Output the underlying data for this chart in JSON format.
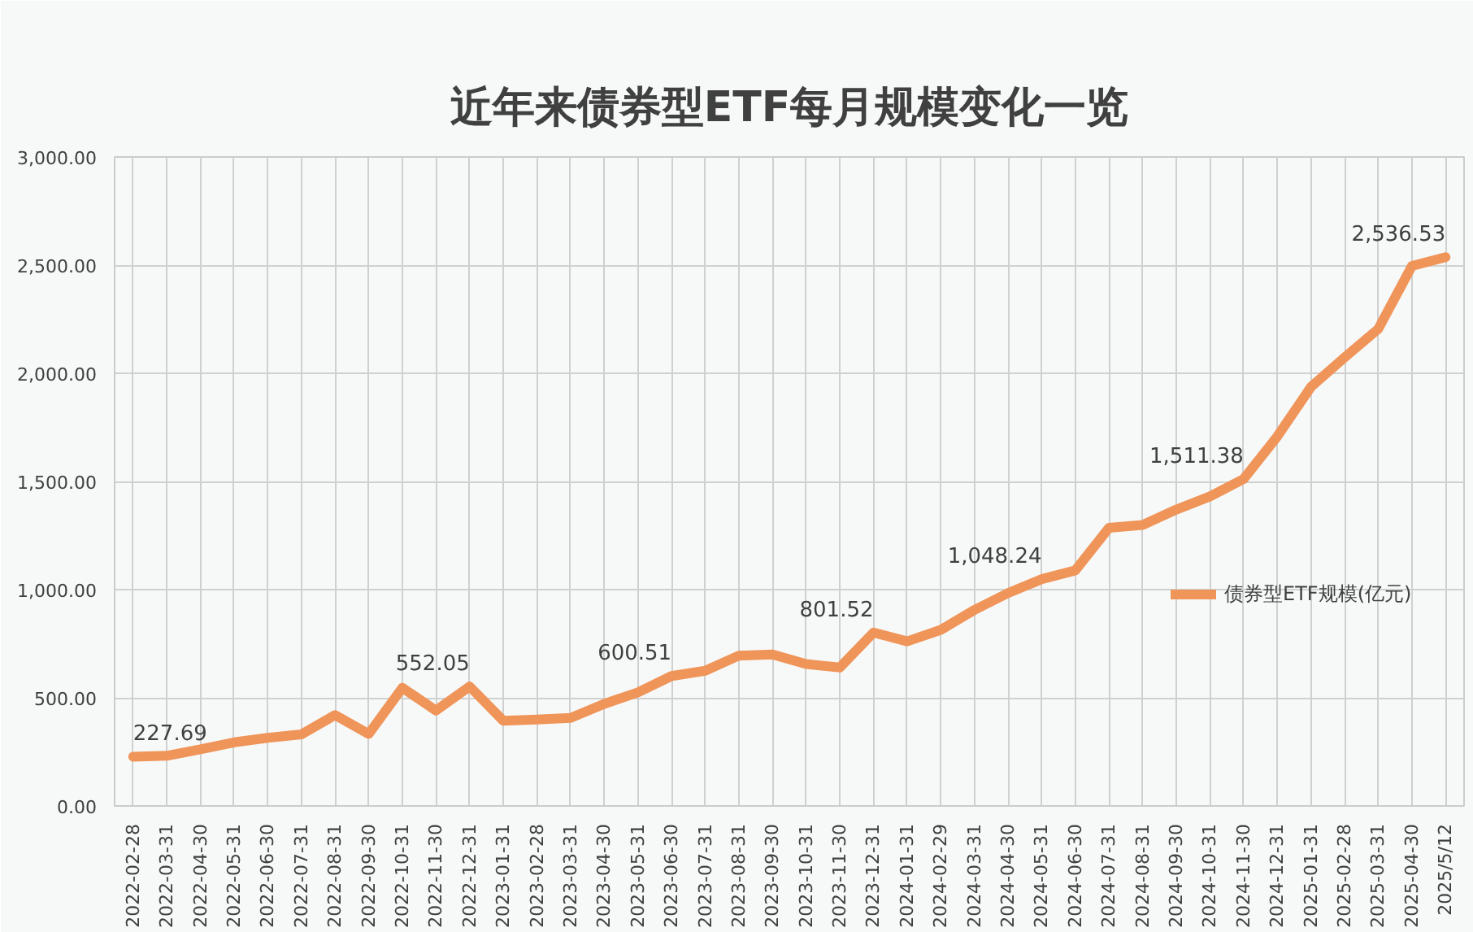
{
  "chart_data": {
    "type": "line",
    "title": "近年来债券型ETF每月规模变化一览",
    "categories": [
      "2022-02-28",
      "2022-03-31",
      "2022-04-30",
      "2022-05-31",
      "2022-06-30",
      "2022-07-31",
      "2022-08-31",
      "2022-09-30",
      "2022-10-31",
      "2022-11-30",
      "2022-12-31",
      "2023-01-31",
      "2023-02-28",
      "2023-03-31",
      "2023-04-30",
      "2023-05-31",
      "2023-06-30",
      "2023-07-31",
      "2023-08-31",
      "2023-09-30",
      "2023-10-31",
      "2023-11-30",
      "2023-12-31",
      "2024-01-31",
      "2024-02-29",
      "2024-03-31",
      "2024-04-30",
      "2024-05-31",
      "2024-06-30",
      "2024-07-31",
      "2024-08-31",
      "2024-09-30",
      "2024-10-31",
      "2024-11-30",
      "2024-12-31",
      "2025-01-31",
      "2025-02-28",
      "2025-03-31",
      "2025-04-30",
      "2025/5/12"
    ],
    "series": [
      {
        "name": "债券型ETF规模(亿元)",
        "color": "#f0955a",
        "values": [
          227.69,
          232,
          262,
          294,
          315,
          331,
          420,
          333,
          546,
          441,
          552.05,
          394,
          399,
          407,
          472,
          525,
          600.51,
          625,
          695,
          700,
          656,
          640,
          801.52,
          761,
          814,
          906,
          984,
          1048.24,
          1089,
          1286,
          1299,
          1370,
          1431,
          1511.38,
          1708,
          1937,
          2073,
          2205,
          2496,
          2536.53
        ],
        "value_labels": [
          "227.69",
          null,
          null,
          null,
          null,
          null,
          null,
          null,
          null,
          null,
          "552.05",
          null,
          null,
          null,
          null,
          null,
          "600.51",
          null,
          null,
          null,
          null,
          null,
          "801.52",
          null,
          null,
          null,
          null,
          "1,048.24",
          null,
          null,
          null,
          null,
          null,
          "1,511.38",
          null,
          null,
          null,
          null,
          null,
          "2,536.53"
        ]
      }
    ],
    "ylim": [
      0,
      3000
    ],
    "yticks": [
      {
        "value": 0,
        "label": "0.00"
      },
      {
        "value": 500,
        "label": "500.00"
      },
      {
        "value": 1000,
        "label": "1,000.00"
      },
      {
        "value": 1500,
        "label": "1,500.00"
      },
      {
        "value": 2000,
        "label": "2,000.00"
      },
      {
        "value": 2500,
        "label": "2,500.00"
      },
      {
        "value": 3000,
        "label": "3,000.00"
      }
    ],
    "grid": true,
    "legend": "right",
    "marker": "none",
    "line_style": "solid"
  }
}
